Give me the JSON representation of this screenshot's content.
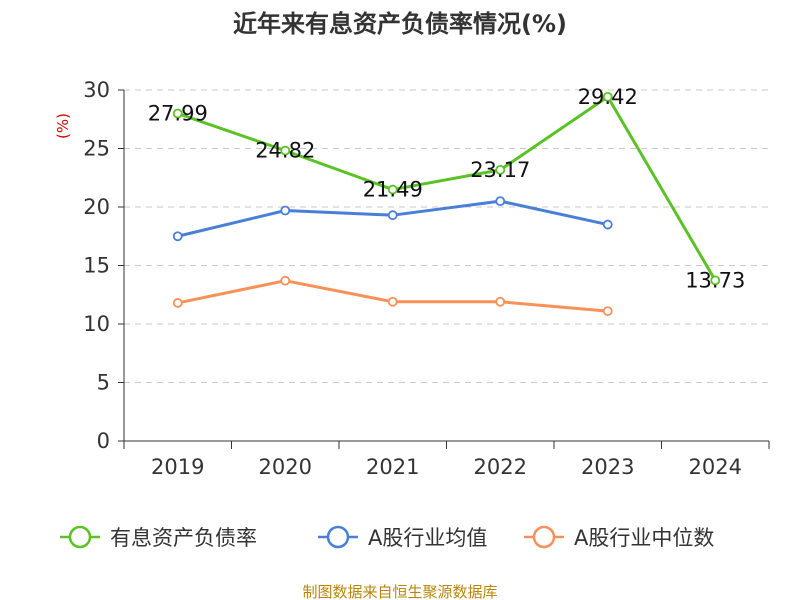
{
  "chart_data": {
    "type": "line",
    "title": "近年来有息资产负债率情况(%)",
    "ylabel": "(%)",
    "xlabel": "",
    "categories": [
      "2019",
      "2020",
      "2021",
      "2022",
      "2023",
      "2024"
    ],
    "ylim": [
      0,
      30
    ],
    "yticks": [
      0,
      5,
      10,
      15,
      20,
      25,
      30
    ],
    "grid": true,
    "legend_position": "bottom",
    "series": [
      {
        "name": "有息资产负债率",
        "color": "#5ac224",
        "values": [
          27.99,
          24.82,
          21.49,
          23.17,
          29.42,
          13.73
        ],
        "labels": [
          "27.99",
          "24.82",
          "21.49",
          "23.17",
          "29.42",
          "13.73"
        ]
      },
      {
        "name": "A股行业均值",
        "color": "#4a7fd8",
        "values": [
          17.5,
          19.7,
          19.3,
          20.5,
          18.5,
          null
        ]
      },
      {
        "name": "A股行业中位数",
        "color": "#f7915a",
        "values": [
          11.8,
          13.7,
          11.9,
          11.9,
          11.1,
          null
        ]
      }
    ]
  },
  "source": "制图数据来自恒生聚源数据库"
}
